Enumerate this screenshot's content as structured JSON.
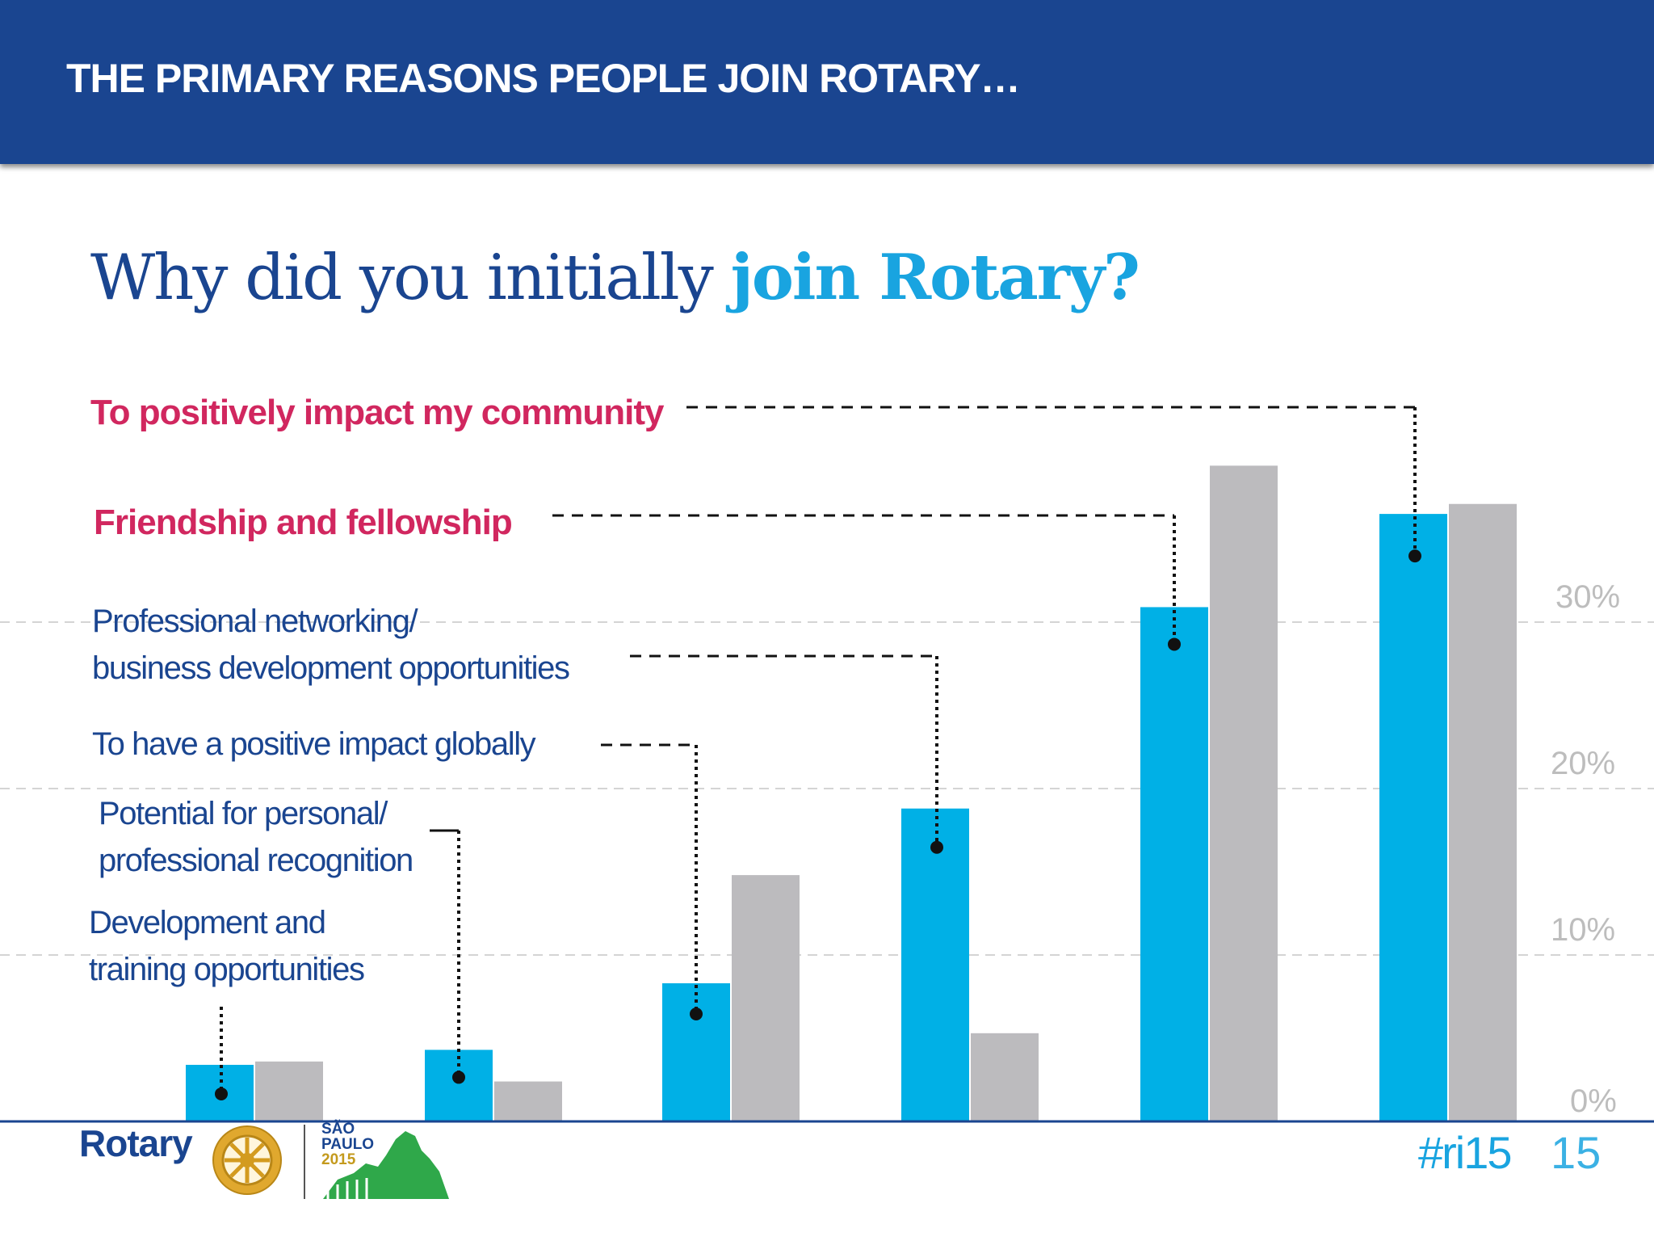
{
  "header": {
    "title": "THE PRIMARY REASONS PEOPLE JOIN ROTARY…"
  },
  "question": {
    "part1": "Why did you initially ",
    "part2": "join Rotary?"
  },
  "chart_data": {
    "type": "bar",
    "categories": [
      "Development and training opportunities",
      "Potential for personal/ professional recognition",
      "To have a positive impact globally",
      "Professional networking/ business development opportunities",
      "Friendship and fellowship",
      "To positively impact my community"
    ],
    "series": [
      {
        "values": [
          3.4,
          4.3,
          8.3,
          18.8,
          30.9,
          36.5
        ],
        "color": "#00b0e6"
      },
      {
        "values": [
          3.6,
          2.4,
          14.8,
          5.3,
          39.4,
          37.1
        ],
        "color": "#bcbbbe"
      }
    ],
    "y_ticks": [
      "0%",
      "10%",
      "20%",
      "30%"
    ],
    "ylim": [
      0,
      40
    ],
    "grid": true,
    "y_axis_side": "right"
  },
  "labels": [
    {
      "lines": [
        "Development and",
        "training opportunities"
      ],
      "style": "std"
    },
    {
      "lines": [
        "Potential for personal/",
        "professional recognition"
      ],
      "style": "std"
    },
    {
      "lines": [
        "To have a positive impact globally"
      ],
      "style": "std"
    },
    {
      "lines": [
        "Professional networking/",
        "business development opportunities"
      ],
      "style": "std"
    },
    {
      "lines": [
        "Friendship and fellowship"
      ],
      "style": "hl"
    },
    {
      "lines": [
        "To positively impact my community"
      ],
      "style": "hl"
    }
  ],
  "footer": {
    "logo_text": "Rotary",
    "event_city_line1": "SÃO",
    "event_city_line2": "PAULO",
    "event_year": "2015",
    "hashtag": "#ri15",
    "slide_number": "15"
  },
  "colors": {
    "header": "#1a4590",
    "accent": "#19a4e0",
    "highlight": "#d1275f",
    "navy": "#1a4590"
  },
  "icons": [
    "rotary-wheel-icon",
    "sao-paulo-skyline-icon"
  ]
}
